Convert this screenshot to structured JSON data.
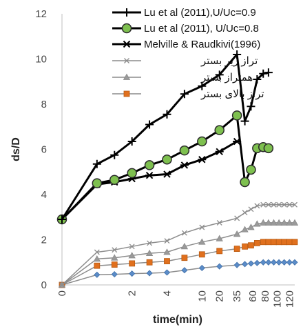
{
  "chart_data": {
    "type": "line",
    "xlabel": "time(min)",
    "ylabel": "ds/D",
    "ylim": [
      0,
      12
    ],
    "y_ticks": [
      "0",
      "2",
      "4",
      "6",
      "8",
      "10",
      "12"
    ],
    "x_ticks": [
      "0",
      "2",
      "4",
      "10",
      "20",
      "35",
      "60",
      "80",
      "100",
      "120"
    ],
    "grid": false,
    "legend_position": "top-right",
    "series": [
      {
        "name": "Lu et al (2011),U/Uc=0.9",
        "color": "#000000",
        "marker": "plus",
        "width": 3,
        "points": [
          [
            0,
            2.9
          ],
          [
            2,
            5.35
          ],
          [
            3,
            5.75
          ],
          [
            4,
            6.35
          ],
          [
            5,
            7.1
          ],
          [
            6,
            7.55
          ],
          [
            7,
            8.45
          ],
          [
            8,
            8.8
          ],
          [
            9,
            9.3
          ],
          [
            10,
            10.2
          ],
          [
            10.45,
            7.25
          ],
          [
            10.8,
            7.9
          ],
          [
            11.15,
            9.1
          ],
          [
            11.5,
            9.35
          ],
          [
            11.8,
            9.4
          ]
        ]
      },
      {
        "name": "Lu et al (2011), U/Uc=0.8",
        "color": "#000000",
        "marker": "circle",
        "marker_fill": "#7ec04f",
        "width": 3,
        "points": [
          [
            0,
            2.9
          ],
          [
            2,
            4.5
          ],
          [
            3,
            4.65
          ],
          [
            4,
            4.95
          ],
          [
            5,
            5.3
          ],
          [
            6,
            5.55
          ],
          [
            7,
            5.95
          ],
          [
            8,
            6.35
          ],
          [
            9,
            6.85
          ],
          [
            10,
            7.5
          ],
          [
            10.45,
            4.55
          ],
          [
            10.8,
            5.1
          ],
          [
            11.15,
            6.05
          ],
          [
            11.5,
            6.1
          ],
          [
            11.8,
            6.05
          ]
        ]
      },
      {
        "name": "Melville & Raudkivi(1996)",
        "color": "#000000",
        "marker": "star",
        "width": 3,
        "points": [
          [
            0,
            2.9
          ],
          [
            2,
            4.45
          ],
          [
            3,
            4.55
          ],
          [
            4,
            4.7
          ],
          [
            5,
            4.85
          ],
          [
            6,
            4.9
          ],
          [
            7,
            5.3
          ],
          [
            8,
            5.55
          ],
          [
            9,
            5.9
          ],
          [
            10,
            6.35
          ]
        ]
      },
      {
        "name": "تراز زیر بستر",
        "color": "#8c8c8c",
        "marker": "x",
        "width": 1.5,
        "points": [
          [
            0,
            0
          ],
          [
            2,
            1.45
          ],
          [
            3,
            1.55
          ],
          [
            4,
            1.7
          ],
          [
            5,
            1.85
          ],
          [
            6,
            1.95
          ],
          [
            7,
            2.3
          ],
          [
            8,
            2.55
          ],
          [
            9,
            2.75
          ],
          [
            10,
            2.95
          ],
          [
            10.45,
            3.2
          ],
          [
            10.8,
            3.35
          ],
          [
            11.15,
            3.5
          ],
          [
            11.5,
            3.55
          ],
          [
            11.8,
            3.55
          ],
          [
            12.1,
            3.55
          ],
          [
            12.4,
            3.55
          ],
          [
            12.7,
            3.55
          ],
          [
            13,
            3.55
          ],
          [
            13.3,
            3.55
          ]
        ]
      },
      {
        "name": "همتراز بستر",
        "color": "#8c8c8c",
        "marker": "triangle",
        "width": 1.5,
        "points": [
          [
            0,
            0
          ],
          [
            2,
            1.15
          ],
          [
            3,
            1.2
          ],
          [
            4,
            1.3
          ],
          [
            5,
            1.4
          ],
          [
            6,
            1.45
          ],
          [
            7,
            1.7
          ],
          [
            8,
            1.9
          ],
          [
            9,
            2.05
          ],
          [
            10,
            2.25
          ],
          [
            10.45,
            2.45
          ],
          [
            10.8,
            2.55
          ],
          [
            11.15,
            2.7
          ],
          [
            11.5,
            2.75
          ],
          [
            11.8,
            2.75
          ],
          [
            12.1,
            2.75
          ],
          [
            12.4,
            2.75
          ],
          [
            12.7,
            2.75
          ],
          [
            13,
            2.75
          ],
          [
            13.3,
            2.75
          ]
        ]
      },
      {
        "name": "تراز بالای بستر",
        "color": "#e0701e",
        "marker": "square",
        "width": 1.5,
        "points": [
          [
            0,
            0
          ],
          [
            2,
            0.85
          ],
          [
            3,
            0.9
          ],
          [
            4,
            0.95
          ],
          [
            5,
            1.0
          ],
          [
            6,
            1.05
          ],
          [
            7,
            1.2
          ],
          [
            8,
            1.35
          ],
          [
            9,
            1.5
          ],
          [
            10,
            1.6
          ],
          [
            10.45,
            1.7
          ],
          [
            10.8,
            1.75
          ],
          [
            11.15,
            1.85
          ],
          [
            11.5,
            1.9
          ],
          [
            11.8,
            1.9
          ],
          [
            12.1,
            1.9
          ],
          [
            12.4,
            1.9
          ],
          [
            12.7,
            1.9
          ],
          [
            13,
            1.9
          ],
          [
            13.3,
            1.9
          ]
        ]
      },
      {
        "name": "",
        "color": "#5b8cc8",
        "marker": "diamond",
        "width": 1.5,
        "points": [
          [
            0,
            0
          ],
          [
            2,
            0.45
          ],
          [
            3,
            0.47
          ],
          [
            4,
            0.5
          ],
          [
            5,
            0.52
          ],
          [
            6,
            0.55
          ],
          [
            7,
            0.65
          ],
          [
            8,
            0.75
          ],
          [
            9,
            0.82
          ],
          [
            10,
            0.88
          ],
          [
            10.45,
            0.92
          ],
          [
            10.8,
            0.95
          ],
          [
            11.15,
            0.97
          ],
          [
            11.5,
            1.0
          ],
          [
            11.8,
            1.0
          ],
          [
            12.1,
            1.0
          ],
          [
            12.4,
            1.0
          ],
          [
            12.7,
            1.0
          ],
          [
            13,
            1.0
          ],
          [
            13.3,
            1.0
          ]
        ]
      }
    ]
  }
}
